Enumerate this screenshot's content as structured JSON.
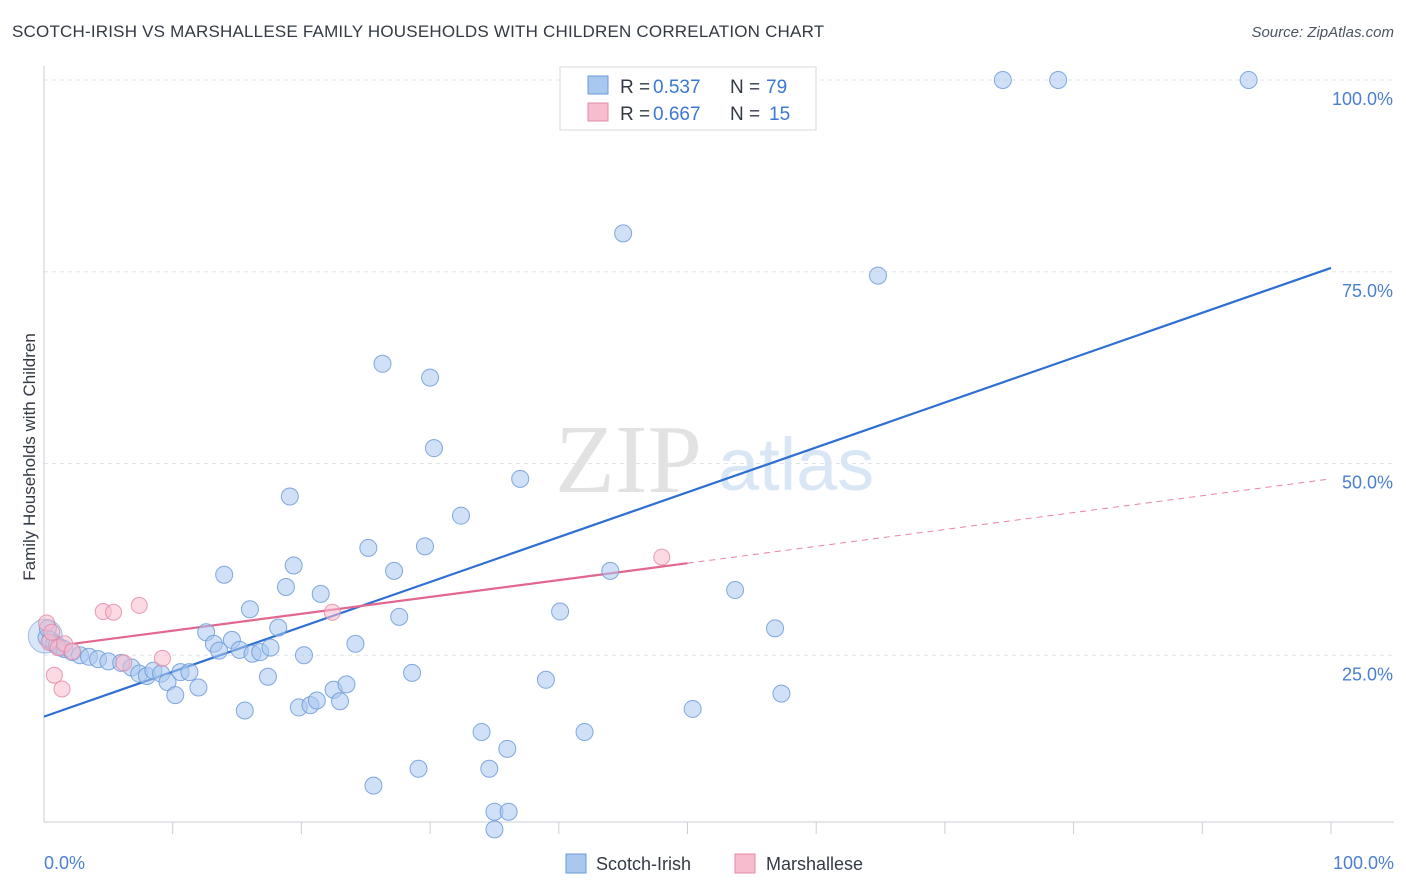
{
  "title": "SCOTCH-IRISH VS MARSHALLESE FAMILY HOUSEHOLDS WITH CHILDREN CORRELATION CHART",
  "source": "Source: ZipAtlas.com",
  "watermark": {
    "zip": "ZIP",
    "atlas": "atlas"
  },
  "legend": {
    "rows": [
      {
        "r_label": "R =",
        "r_value": "0.537",
        "n_label": "N =",
        "n_value": "79",
        "color": "#a9c8f0",
        "border": "#6c9ad8"
      },
      {
        "r_label": "R =",
        "r_value": "0.667",
        "n_label": "N =",
        "n_value": "15",
        "color": "#f7bccd",
        "border": "#e48aa5"
      }
    ]
  },
  "chart_data": {
    "type": "scatter",
    "title": "SCOTCH-IRISH VS MARSHALLESE FAMILY HOUSEHOLDS WITH CHILDREN CORRELATION CHART",
    "xlabel": "",
    "ylabel": "Family Households with Children",
    "xlim": [
      0,
      100
    ],
    "ylim": [
      0,
      100
    ],
    "x_tick_labels": [
      "0.0%",
      "100.0%"
    ],
    "y_tick_values": [
      25,
      50,
      75,
      100
    ],
    "y_tick_labels": [
      "25.0%",
      "50.0%",
      "75.0%",
      "100.0%"
    ],
    "series": [
      {
        "name": "Scotch-Irish",
        "color": "#a9c8f0",
        "edge": "#6c9ad8",
        "trend": {
          "x0": 0,
          "y0": 17.0,
          "x1": 100,
          "y1": 75.5,
          "color": "#2d6fd2",
          "dashed_from": null
        },
        "points": [
          [
            0.2,
            27.3
          ],
          [
            0.5,
            27.0
          ],
          [
            0.8,
            26.5
          ],
          [
            1.0,
            26.3
          ],
          [
            1.3,
            26.0
          ],
          [
            1.6,
            25.8
          ],
          [
            2.2,
            25.4
          ],
          [
            2.8,
            25.0
          ],
          [
            3.5,
            24.8
          ],
          [
            4.2,
            24.5
          ],
          [
            5.0,
            24.2
          ],
          [
            6.0,
            24.0
          ],
          [
            6.8,
            23.4
          ],
          [
            7.4,
            22.6
          ],
          [
            8.0,
            22.3
          ],
          [
            8.5,
            23.0
          ],
          [
            9.1,
            22.6
          ],
          [
            9.6,
            21.5
          ],
          [
            10.2,
            19.8
          ],
          [
            10.6,
            22.8
          ],
          [
            11.3,
            22.8
          ],
          [
            12.0,
            20.8
          ],
          [
            12.6,
            28.0
          ],
          [
            13.2,
            26.5
          ],
          [
            13.6,
            25.6
          ],
          [
            14.0,
            35.5
          ],
          [
            14.6,
            27.0
          ],
          [
            15.2,
            25.7
          ],
          [
            15.6,
            17.8
          ],
          [
            16.0,
            31.0
          ],
          [
            16.2,
            25.2
          ],
          [
            16.8,
            25.4
          ],
          [
            17.4,
            22.2
          ],
          [
            17.6,
            26.0
          ],
          [
            18.2,
            28.6
          ],
          [
            18.8,
            33.9
          ],
          [
            19.1,
            45.7
          ],
          [
            19.4,
            36.7
          ],
          [
            19.8,
            18.2
          ],
          [
            20.2,
            25.0
          ],
          [
            20.7,
            18.5
          ],
          [
            21.2,
            19.1
          ],
          [
            21.5,
            33.0
          ],
          [
            22.5,
            20.5
          ],
          [
            23.0,
            19.0
          ],
          [
            23.5,
            21.2
          ],
          [
            24.2,
            26.5
          ],
          [
            25.2,
            39.0
          ],
          [
            25.6,
            8.0
          ],
          [
            26.3,
            63.0
          ],
          [
            27.2,
            36.0
          ],
          [
            27.6,
            30.0
          ],
          [
            28.6,
            22.7
          ],
          [
            29.1,
            10.2
          ],
          [
            29.6,
            39.2
          ],
          [
            30.0,
            61.2
          ],
          [
            30.3,
            52.0
          ],
          [
            32.4,
            43.2
          ],
          [
            34.0,
            15.0
          ],
          [
            34.6,
            10.2
          ],
          [
            35.0,
            2.3
          ],
          [
            35.0,
            4.6
          ],
          [
            36.0,
            12.8
          ],
          [
            36.1,
            4.6
          ],
          [
            37.0,
            48.0
          ],
          [
            39.0,
            21.8
          ],
          [
            40.1,
            30.7
          ],
          [
            42.0,
            15.0
          ],
          [
            44.0,
            36.0
          ],
          [
            45.0,
            80.0
          ],
          [
            50.4,
            18.0
          ],
          [
            53.7,
            33.5
          ],
          [
            56.8,
            28.5
          ],
          [
            57.3,
            20.0
          ],
          [
            64.8,
            74.5
          ],
          [
            74.5,
            100.0
          ],
          [
            78.8,
            100.0
          ],
          [
            93.6,
            100.0
          ],
          [
            0.3,
            28.5
          ]
        ]
      },
      {
        "name": "Marshallese",
        "color": "#f7bccd",
        "edge": "#e48aa5",
        "trend": {
          "x0": 0,
          "y0": 26.0,
          "x1": 100,
          "y1": 48.0,
          "color": "#e2668e",
          "dashed_from": 50
        },
        "points": [
          [
            0.2,
            29.2
          ],
          [
            0.4,
            26.7
          ],
          [
            0.6,
            28.0
          ],
          [
            0.8,
            22.4
          ],
          [
            1.1,
            26.0
          ],
          [
            1.4,
            20.6
          ],
          [
            1.6,
            26.5
          ],
          [
            2.2,
            25.5
          ],
          [
            4.6,
            30.7
          ],
          [
            5.4,
            30.6
          ],
          [
            6.2,
            24.0
          ],
          [
            7.4,
            31.5
          ],
          [
            9.2,
            24.6
          ],
          [
            22.4,
            30.6
          ],
          [
            48.0,
            37.8
          ]
        ]
      }
    ]
  }
}
